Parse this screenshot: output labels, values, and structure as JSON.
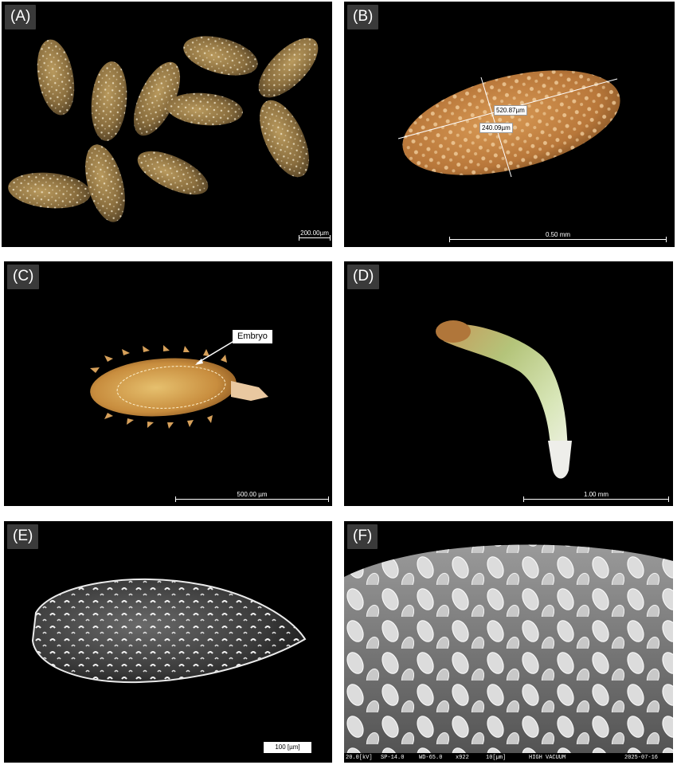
{
  "panels": {
    "a": {
      "label": "(A)",
      "scale": "200.00µm"
    },
    "b": {
      "label": "(B)",
      "scale": "0.50 mm",
      "length": "520.87µm",
      "width": "240.09µm"
    },
    "c": {
      "label": "(C)",
      "scale": "500.00 µm",
      "annotation": "Embryo"
    },
    "d": {
      "label": "(D)",
      "scale": "1.00 mm"
    },
    "e": {
      "label": "(E)",
      "scale": "100 [µm]"
    },
    "f": {
      "label": "(F)",
      "footer": [
        "20.0[kV]",
        "SP-14.0",
        "WD-65.0",
        "x922",
        "10[µm]",
        "HIGH VACUUM",
        "2025-07-16"
      ]
    }
  },
  "colors": {
    "seed": "#a98a52",
    "seed_dark": "#6f5530",
    "background": "#000000",
    "sem": "#d8d8d8"
  }
}
